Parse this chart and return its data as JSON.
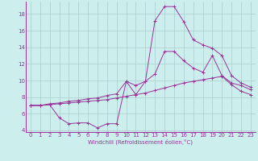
{
  "xlabel": "Windchill (Refroidissement éolien,°C)",
  "background_color": "#cceeed",
  "grid_color": "#aacccc",
  "line_color": "#993399",
  "xlim": [
    -0.5,
    23.5
  ],
  "ylim": [
    3.8,
    19.5
  ],
  "yticks": [
    4,
    6,
    8,
    10,
    12,
    14,
    16,
    18
  ],
  "xticks": [
    0,
    1,
    2,
    3,
    4,
    5,
    6,
    7,
    8,
    9,
    10,
    11,
    12,
    13,
    14,
    15,
    16,
    17,
    18,
    19,
    20,
    21,
    22,
    23
  ],
  "series1_x": [
    0,
    1,
    2,
    3,
    4,
    5,
    6,
    7,
    8,
    9,
    10,
    11,
    12,
    13,
    14,
    15,
    16,
    17,
    18,
    19,
    20,
    21,
    22,
    23
  ],
  "series1_y": [
    7.0,
    7.0,
    7.1,
    5.5,
    4.8,
    4.9,
    4.9,
    4.3,
    4.8,
    4.8,
    9.9,
    8.3,
    9.9,
    17.2,
    18.9,
    18.9,
    17.1,
    14.9,
    14.3,
    13.9,
    13.0,
    10.6,
    9.7,
    9.2
  ],
  "series2_x": [
    0,
    1,
    2,
    3,
    4,
    5,
    6,
    7,
    8,
    9,
    10,
    11,
    12,
    13,
    14,
    15,
    16,
    17,
    18,
    19,
    20,
    21,
    22,
    23
  ],
  "series2_y": [
    7.0,
    7.0,
    7.2,
    7.3,
    7.5,
    7.6,
    7.8,
    7.9,
    8.2,
    8.4,
    9.9,
    9.4,
    9.9,
    10.8,
    13.5,
    13.5,
    12.4,
    11.5,
    11.0,
    13.0,
    10.6,
    9.7,
    9.4,
    8.9
  ],
  "series3_x": [
    0,
    1,
    2,
    3,
    4,
    5,
    6,
    7,
    8,
    9,
    10,
    11,
    12,
    13,
    14,
    15,
    16,
    17,
    18,
    19,
    20,
    21,
    22,
    23
  ],
  "series3_y": [
    7.0,
    7.0,
    7.1,
    7.2,
    7.3,
    7.4,
    7.5,
    7.6,
    7.7,
    7.9,
    8.1,
    8.3,
    8.5,
    8.8,
    9.1,
    9.4,
    9.7,
    9.9,
    10.1,
    10.3,
    10.5,
    9.5,
    8.7,
    8.3
  ]
}
